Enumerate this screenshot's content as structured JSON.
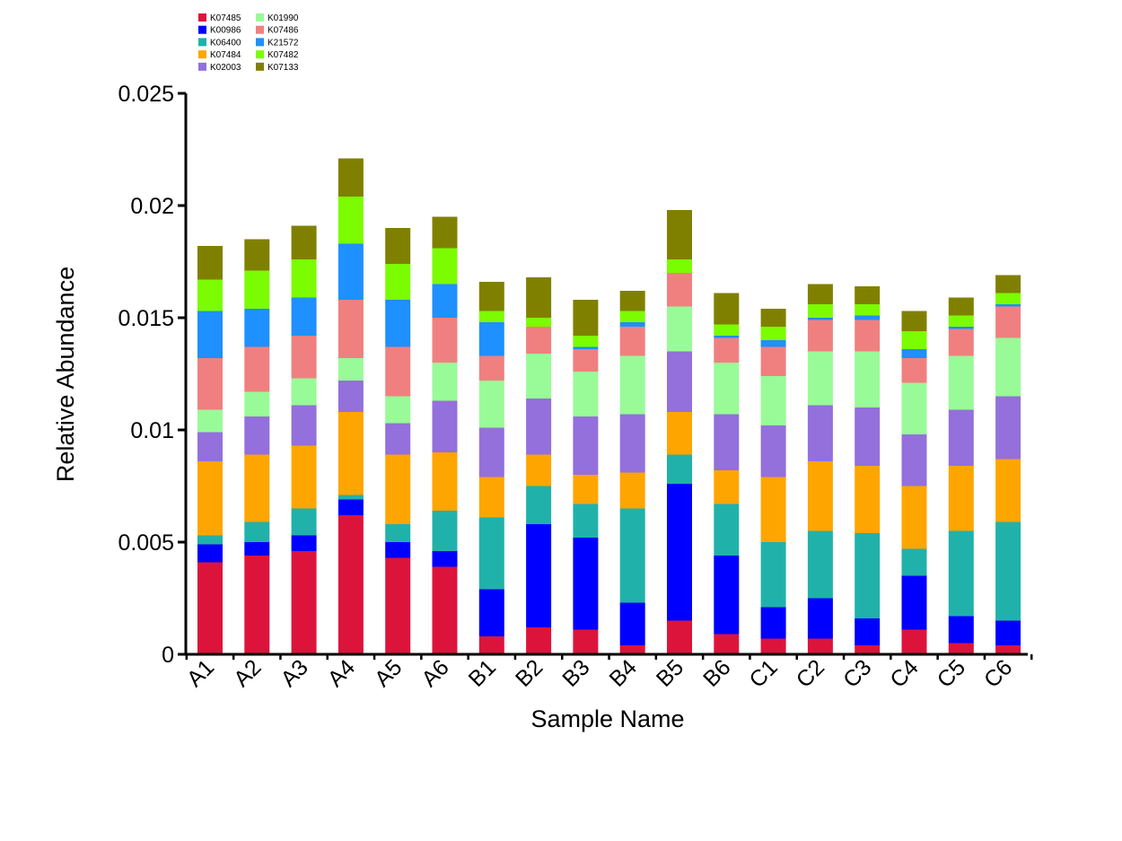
{
  "chart_data": {
    "type": "bar",
    "stacked": true,
    "xlabel": "Sample Name",
    "ylabel": "Relative Abundance",
    "ylim": [
      0,
      0.025
    ],
    "yticks": [
      0,
      0.005,
      0.01,
      0.015,
      0.02,
      0.025
    ],
    "ytick_labels": [
      "0",
      "0.005",
      "0.01",
      "0.015",
      "0.02",
      "0.025"
    ],
    "grid": false,
    "legend_position": "top-left",
    "categories": [
      "A1",
      "A2",
      "A3",
      "A4",
      "A5",
      "A6",
      "B1",
      "B2",
      "B3",
      "B4",
      "B5",
      "B6",
      "C1",
      "C2",
      "C3",
      "C4",
      "C5",
      "C6"
    ],
    "series": [
      {
        "name": "K07485",
        "color": "#DC143C",
        "values": [
          0.0041,
          0.0044,
          0.0046,
          0.0062,
          0.0043,
          0.0039,
          0.0008,
          0.0012,
          0.0011,
          0.0004,
          0.0015,
          0.0009,
          0.0007,
          0.0007,
          0.0004,
          0.0011,
          0.0005,
          0.0004
        ]
      },
      {
        "name": "K00986",
        "color": "#0000FF",
        "values": [
          0.0008,
          0.0006,
          0.0007,
          0.0007,
          0.0007,
          0.0007,
          0.0021,
          0.0046,
          0.0041,
          0.0019,
          0.0061,
          0.0035,
          0.0014,
          0.0018,
          0.0012,
          0.0024,
          0.0012,
          0.0011
        ]
      },
      {
        "name": "K06400",
        "color": "#20B2AA",
        "values": [
          0.0004,
          0.0009,
          0.0012,
          0.0002,
          0.0008,
          0.0018,
          0.0032,
          0.0017,
          0.0015,
          0.0042,
          0.0013,
          0.0023,
          0.0029,
          0.003,
          0.0038,
          0.0012,
          0.0038,
          0.0044
        ]
      },
      {
        "name": "K07484",
        "color": "#FFA500",
        "values": [
          0.0033,
          0.003,
          0.0028,
          0.0037,
          0.0031,
          0.0026,
          0.0018,
          0.0014,
          0.0013,
          0.0016,
          0.0019,
          0.0015,
          0.0029,
          0.0031,
          0.003,
          0.0028,
          0.0029,
          0.0028
        ]
      },
      {
        "name": "K02003",
        "color": "#9370DB",
        "values": [
          0.0013,
          0.0017,
          0.0018,
          0.0014,
          0.0014,
          0.0023,
          0.0022,
          0.0025,
          0.0026,
          0.0026,
          0.0027,
          0.0025,
          0.0023,
          0.0025,
          0.0026,
          0.0023,
          0.0025,
          0.0028
        ]
      },
      {
        "name": "K01990",
        "color": "#98FB98",
        "values": [
          0.001,
          0.0011,
          0.0012,
          0.001,
          0.0012,
          0.0017,
          0.0021,
          0.002,
          0.002,
          0.0026,
          0.002,
          0.0023,
          0.0022,
          0.0024,
          0.0025,
          0.0023,
          0.0024,
          0.0026
        ]
      },
      {
        "name": "K07486",
        "color": "#F08080",
        "values": [
          0.0023,
          0.002,
          0.0019,
          0.0026,
          0.0022,
          0.002,
          0.0011,
          0.0012,
          0.001,
          0.0013,
          0.0015,
          0.0011,
          0.0013,
          0.0014,
          0.0014,
          0.0011,
          0.0012,
          0.0014
        ]
      },
      {
        "name": "K21572",
        "color": "#1E90FF",
        "values": [
          0.0021,
          0.0017,
          0.0017,
          0.0025,
          0.0021,
          0.0015,
          0.0015,
          0.0,
          0.0001,
          0.0002,
          0.0,
          0.0001,
          0.0003,
          0.0001,
          0.0002,
          0.0004,
          0.0001,
          0.0001
        ]
      },
      {
        "name": "K07482",
        "color": "#7CFC00",
        "values": [
          0.0014,
          0.0017,
          0.0017,
          0.0021,
          0.0016,
          0.0016,
          0.0005,
          0.0004,
          0.0005,
          0.0005,
          0.0006,
          0.0005,
          0.0006,
          0.0006,
          0.0005,
          0.0008,
          0.0005,
          0.0005
        ]
      },
      {
        "name": "K07133",
        "color": "#808000",
        "values": [
          0.0015,
          0.0014,
          0.0015,
          0.0017,
          0.0016,
          0.0014,
          0.0013,
          0.0018,
          0.0016,
          0.0009,
          0.0022,
          0.0014,
          0.0008,
          0.0009,
          0.0008,
          0.0009,
          0.0008,
          0.0008
        ]
      }
    ]
  }
}
